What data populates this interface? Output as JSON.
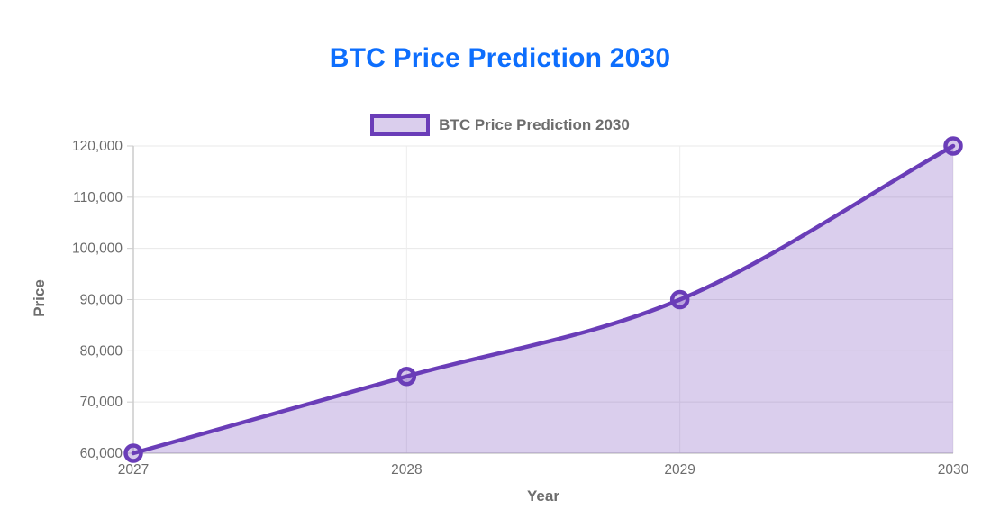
{
  "title": {
    "text": "BTC Price Prediction 2030",
    "color": "#0d6efd"
  },
  "legend": {
    "label": "BTC Price Prediction 2030",
    "swatch_border_color": "#6a3db8",
    "swatch_fill_color": "rgba(106,61,184,0.25)",
    "position": "top"
  },
  "chart_data": {
    "type": "area",
    "title": "BTC Price Prediction 2030",
    "series": [
      {
        "name": "BTC Price Prediction 2030",
        "values": [
          60000,
          75000,
          90000,
          120000
        ]
      }
    ],
    "categories": [
      "2027",
      "2028",
      "2029",
      "2030"
    ],
    "xlabel": "Year",
    "ylabel": "Price",
    "ylim": [
      60000,
      120000
    ],
    "y_ticks": [
      60000,
      70000,
      80000,
      90000,
      100000,
      110000,
      120000
    ],
    "y_tick_labels": [
      "60,000",
      "70,000",
      "80,000",
      "90,000",
      "100,000",
      "110,000",
      "120,000"
    ],
    "grid": true,
    "curve": "monotone",
    "legend_position": "top",
    "line_color": "#6a3db8",
    "fill_color": "rgba(106,61,184,0.25)",
    "marker_fill_color": "rgba(106,61,184,0.28)",
    "grid_color": "#e8e8e8",
    "axis_line_color": "#cccccc",
    "tick_text_color": "#6b6b6b"
  }
}
